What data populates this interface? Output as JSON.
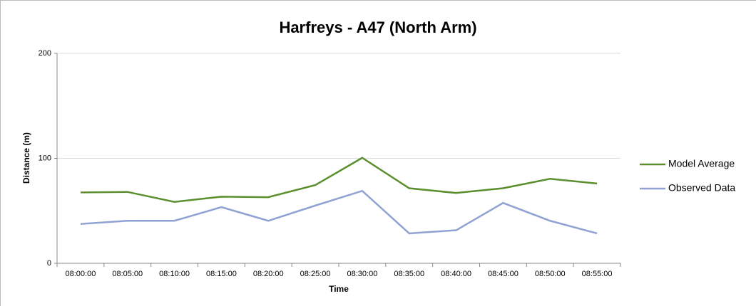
{
  "chart_data": {
    "type": "line",
    "title": "Harfreys - A47 (North Arm)",
    "x_label": "Time",
    "y_label": "Distance (m)",
    "categories": [
      "08:00:00",
      "08:05:00",
      "08:10:00",
      "08:15:00",
      "08:20:00",
      "08:25:00",
      "08:30:00",
      "08:35:00",
      "08:40:00",
      "08:45:00",
      "08:50:00",
      "08:55:00"
    ],
    "series": [
      {
        "name": "Model Average",
        "color": "#5b8f2e",
        "values": [
          67.5,
          68,
          58.5,
          63.5,
          63,
          74.5,
          100.5,
          71.5,
          67,
          71.5,
          80.5,
          76
        ]
      },
      {
        "name": "Observed Data",
        "color": "#8fa2d2",
        "values": [
          37.5,
          40.5,
          40.5,
          53.5,
          40.5,
          55,
          69,
          28.5,
          31.5,
          57.5,
          40.5,
          28.5
        ]
      }
    ],
    "ylim": [
      0,
      200
    ],
    "yticks": [
      0,
      100,
      200
    ],
    "grid": true,
    "legend": "right"
  }
}
